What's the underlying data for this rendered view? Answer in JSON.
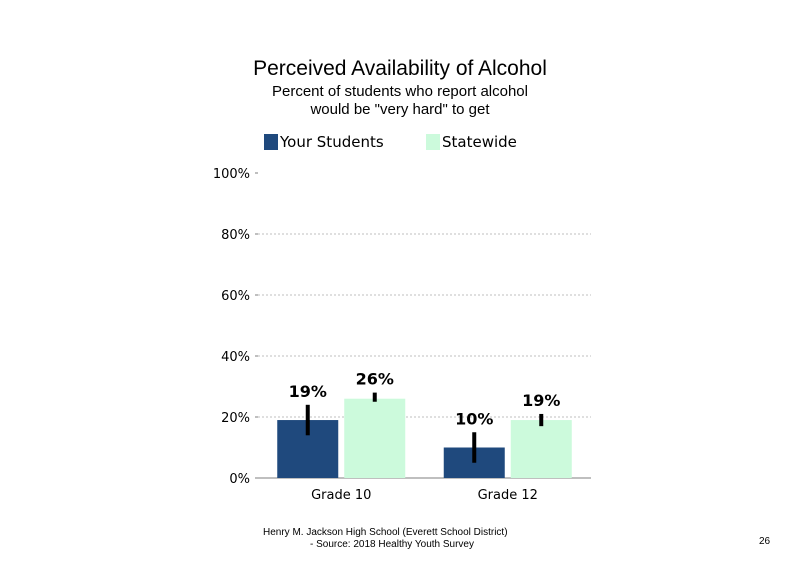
{
  "chart_data": {
    "type": "bar",
    "title": "Perceived Availability of Alcohol",
    "subtitle_line1": "Percent of students who report alcohol",
    "subtitle_line2": "would be \"very hard\" to get",
    "categories": [
      "Grade 10",
      "Grade 12"
    ],
    "series": [
      {
        "name": "Your Students",
        "color": "#1f497d",
        "values": [
          19,
          10
        ],
        "labels": [
          "19%",
          "10%"
        ],
        "ci_low": [
          14,
          5
        ],
        "ci_high": [
          24,
          15
        ]
      },
      {
        "name": "Statewide",
        "color": "#ccfadc",
        "values": [
          26,
          19
        ],
        "labels": [
          "26%",
          "19%"
        ],
        "ci_low": [
          25,
          17
        ],
        "ci_high": [
          28,
          21
        ]
      }
    ],
    "ylim": [
      0,
      100
    ],
    "yticks": [
      0,
      20,
      40,
      60,
      80,
      100
    ],
    "ytick_labels": [
      "0%",
      "20%",
      "40%",
      "60%",
      "80%",
      "100%"
    ],
    "grid": true,
    "legend_position": "top"
  },
  "footer": {
    "line1": "Henry M. Jackson High School (Everett School District)",
    "line2": "- Source: 2018 Healthy Youth Survey",
    "page_number": "26"
  }
}
